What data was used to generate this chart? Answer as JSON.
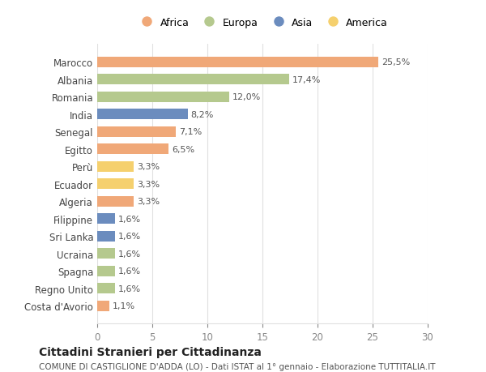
{
  "countries": [
    "Marocco",
    "Albania",
    "Romania",
    "India",
    "Senegal",
    "Egitto",
    "Perù",
    "Ecuador",
    "Algeria",
    "Filippine",
    "Sri Lanka",
    "Ucraina",
    "Spagna",
    "Regno Unito",
    "Costa d'Avorio"
  ],
  "values": [
    25.5,
    17.4,
    12.0,
    8.2,
    7.1,
    6.5,
    3.3,
    3.3,
    3.3,
    1.6,
    1.6,
    1.6,
    1.6,
    1.6,
    1.1
  ],
  "labels": [
    "25,5%",
    "17,4%",
    "12,0%",
    "8,2%",
    "7,1%",
    "6,5%",
    "3,3%",
    "3,3%",
    "3,3%",
    "1,6%",
    "1,6%",
    "1,6%",
    "1,6%",
    "1,6%",
    "1,1%"
  ],
  "continents": [
    "Africa",
    "Europa",
    "Europa",
    "Asia",
    "Africa",
    "Africa",
    "America",
    "America",
    "Africa",
    "Asia",
    "Asia",
    "Europa",
    "Europa",
    "Europa",
    "Africa"
  ],
  "continent_colors": {
    "Africa": "#F0A878",
    "Europa": "#B5C98E",
    "Asia": "#6B8CBE",
    "America": "#F5D06E"
  },
  "legend_order": [
    "Africa",
    "Europa",
    "Asia",
    "America"
  ],
  "title": "Cittadini Stranieri per Cittadinanza",
  "subtitle": "COMUNE DI CASTIGLIONE D'ADDA (LO) - Dati ISTAT al 1° gennaio - Elaborazione TUTTITALIA.IT",
  "xlim": [
    0,
    30
  ],
  "xticks": [
    0,
    5,
    10,
    15,
    20,
    25,
    30
  ],
  "bg_color": "#ffffff",
  "grid_color": "#e0e0e0"
}
